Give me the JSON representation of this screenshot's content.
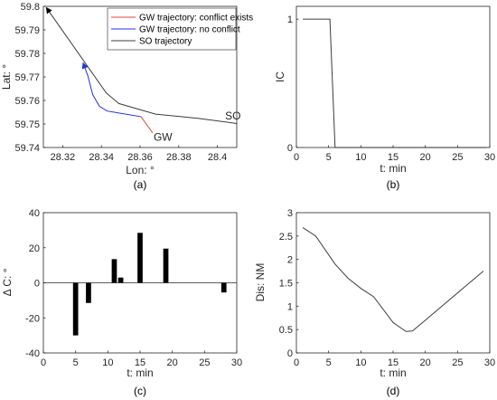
{
  "chart_data": [
    {
      "id": "a",
      "type": "line",
      "caption": "(a)",
      "xlabel": "Lon: °",
      "ylabel": "Lat: °",
      "xlim": [
        28.31,
        28.41
      ],
      "ylim": [
        59.74,
        59.8
      ],
      "xticks": [
        28.32,
        28.34,
        28.36,
        28.38,
        28.4
      ],
      "yticks": [
        59.74,
        59.75,
        59.76,
        59.77,
        59.78,
        59.79,
        59.8
      ],
      "xtick_labels": [
        "28.32",
        "28.34",
        "28.36",
        "28.38",
        "28.4"
      ],
      "ytick_labels": [
        "59.74",
        "59.75",
        "59.76",
        "59.77",
        "59.78",
        "59.79",
        "59.8"
      ],
      "legend_position": "top-right",
      "series": [
        {
          "name": "GW trajectory: conflict exists",
          "color": "#e8423a",
          "x": [
            28.3665,
            28.3605
          ],
          "y": [
            59.7462,
            59.7531
          ]
        },
        {
          "name": "GW trajectory: no conflict",
          "color": "#2233dd",
          "x": [
            28.3605,
            28.343,
            28.339,
            28.3355,
            28.333,
            28.3305
          ],
          "y": [
            59.7531,
            59.7555,
            59.7575,
            59.7625,
            59.7705,
            59.776
          ]
        },
        {
          "name": "SO trajectory",
          "color": "#3c3c3c",
          "x": [
            28.41,
            28.39,
            28.368,
            28.349,
            28.3425,
            28.3115
          ],
          "y": [
            59.7502,
            59.7524,
            59.7542,
            59.7587,
            59.7632,
            59.7995
          ]
        }
      ],
      "annotations": [
        {
          "text": "GW",
          "x": 28.367,
          "y": 59.7445
        },
        {
          "text": "SO",
          "x": 28.404,
          "y": 59.7535
        }
      ]
    },
    {
      "id": "b",
      "type": "line",
      "caption": "(b)",
      "xlabel": "t: min",
      "ylabel": "IC",
      "xlim": [
        0,
        30
      ],
      "ylim": [
        0,
        1.1
      ],
      "xticks": [
        0,
        5,
        10,
        15,
        20,
        25,
        30
      ],
      "yticks": [
        0,
        1
      ],
      "xtick_labels": [
        "0",
        "5",
        "10",
        "15",
        "20",
        "25",
        "30"
      ],
      "ytick_labels": [
        "0",
        "1"
      ],
      "series": [
        {
          "color": "#3c3c3c",
          "x": [
            1,
            5.2,
            6,
            29.5
          ],
          "y": [
            1,
            1,
            0,
            0
          ]
        }
      ]
    },
    {
      "id": "c",
      "type": "bar",
      "caption": "(c)",
      "xlabel": "t: min",
      "ylabel": "Δ C: °",
      "xlim": [
        0,
        30
      ],
      "ylim": [
        -40,
        40
      ],
      "xticks": [
        0,
        5,
        10,
        15,
        20,
        25,
        30
      ],
      "yticks": [
        -40,
        -20,
        0,
        20,
        40
      ],
      "xtick_labels": [
        "0",
        "5",
        "10",
        "15",
        "20",
        "25",
        "30"
      ],
      "ytick_labels": [
        "-40",
        "-20",
        "0",
        "20",
        "40"
      ],
      "bar_width": 0.8,
      "color": "#000000",
      "x": [
        5,
        7,
        11,
        12,
        15,
        19,
        28
      ],
      "values": [
        -30,
        -11.5,
        13.5,
        3,
        28.5,
        19.5,
        -5.5
      ]
    },
    {
      "id": "d",
      "type": "line",
      "caption": "(d)",
      "xlabel": "t: min",
      "ylabel": "Dis: NM",
      "xlim": [
        0,
        30
      ],
      "ylim": [
        0,
        3
      ],
      "xticks": [
        0,
        5,
        10,
        15,
        20,
        25,
        30
      ],
      "yticks": [
        0,
        0.5,
        1,
        1.5,
        2,
        2.5,
        3
      ],
      "xtick_labels": [
        "0",
        "5",
        "10",
        "15",
        "20",
        "25",
        "30"
      ],
      "ytick_labels": [
        "0",
        "0.5",
        "1",
        "1.5",
        "2",
        "2.5",
        "3"
      ],
      "series": [
        {
          "color": "#3c3c3c",
          "x": [
            1,
            3,
            6,
            8,
            10,
            12,
            15,
            17,
            18,
            20,
            23,
            26,
            29
          ],
          "y": [
            2.68,
            2.5,
            1.9,
            1.6,
            1.38,
            1.2,
            0.65,
            0.46,
            0.47,
            0.7,
            1.05,
            1.4,
            1.75
          ]
        }
      ]
    }
  ]
}
